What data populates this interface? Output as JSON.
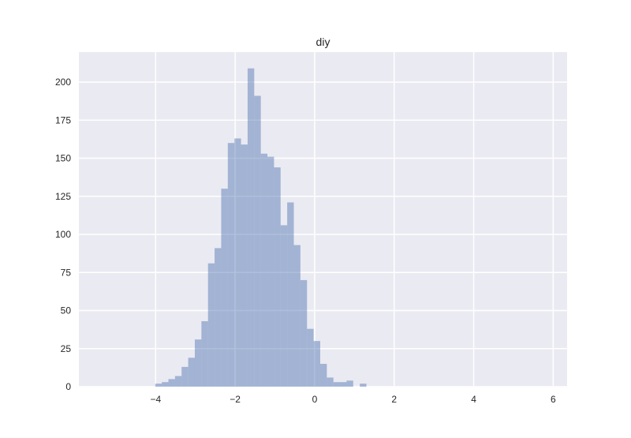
{
  "chart_data": {
    "type": "bar",
    "title": "diy",
    "xlabel": "",
    "ylabel": "",
    "xlim": [
      -5.93,
      6.35
    ],
    "ylim": [
      0,
      219.7
    ],
    "xticks": [
      -4,
      -2,
      0,
      2,
      4,
      6
    ],
    "xtick_labels": [
      "−4",
      "−2",
      "0",
      "2",
      "4",
      "6"
    ],
    "yticks": [
      0,
      25,
      50,
      75,
      100,
      125,
      150,
      175,
      200
    ],
    "ytick_labels": [
      "0",
      "25",
      "50",
      "75",
      "100",
      "125",
      "150",
      "175",
      "200"
    ],
    "grid": true,
    "bin_start": -4.01,
    "bin_width": 0.166,
    "counts": [
      2,
      3,
      5,
      7,
      13,
      19,
      31,
      43,
      81,
      91,
      130,
      160,
      163,
      159,
      209,
      191,
      153,
      151,
      144,
      106,
      121,
      93,
      70,
      38,
      30,
      15,
      6,
      3,
      3,
      4,
      0,
      2
    ],
    "colors": {
      "bar": "#4c72b0",
      "bar_alpha": 0.45,
      "axes_bg": "#eaeaf2",
      "grid": "#ffffff"
    }
  }
}
